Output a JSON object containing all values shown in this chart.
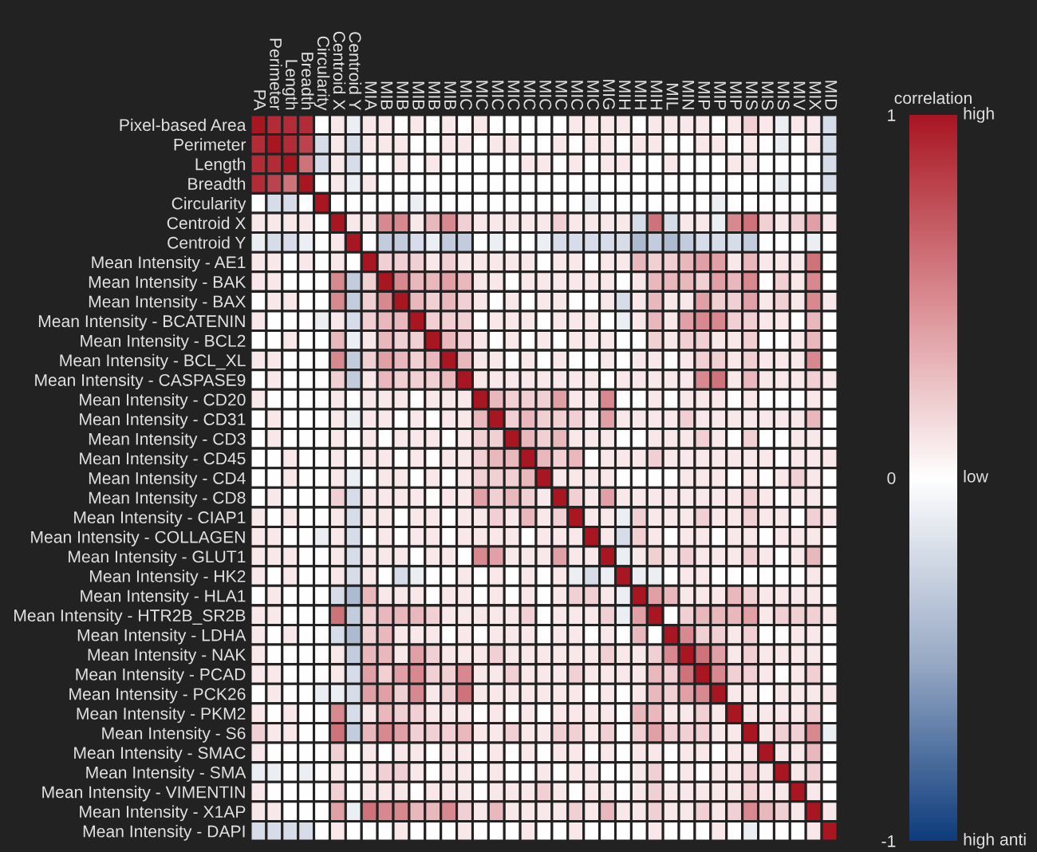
{
  "chart_data": {
    "type": "heatmap",
    "categories": [
      "PA",
      "Perimeter",
      "Length",
      "Breadth",
      "Circularity",
      "Centroid X",
      "Centroid Y",
      "MIA",
      "MIB",
      "MIB",
      "MIB",
      "MIB",
      "MIB",
      "MIC",
      "MIC",
      "MIC",
      "MIC",
      "MIC",
      "MIC",
      "MIC",
      "MIC",
      "MIC",
      "MIG",
      "MIH",
      "MIH",
      "MIH",
      "MIL",
      "MIN",
      "MIP",
      "MIP",
      "MIP",
      "MIS",
      "MIS",
      "MIS",
      "MIV",
      "MIX",
      "MID"
    ],
    "y_categories": [
      "Pixel-based Area",
      "Perimeter",
      "Length",
      "Breadth",
      "Circularity",
      "Centroid X",
      "Centroid Y",
      "Mean Intensity - AE1",
      "Mean Intensity - BAK",
      "Mean Intensity - BAX",
      "Mean Intensity - BCATENIN",
      "Mean Intensity - BCL2",
      "Mean Intensity - BCL_XL",
      "Mean Intensity - CASPASE9",
      "Mean Intensity - CD20",
      "Mean Intensity - CD31",
      "Mean Intensity - CD3",
      "Mean Intensity - CD45",
      "Mean Intensity - CD4",
      "Mean Intensity - CD8",
      "Mean Intensity - CIAP1",
      "Mean Intensity - COLLAGEN",
      "Mean Intensity - GLUT1",
      "Mean Intensity - HK2",
      "Mean Intensity - HLA1",
      "Mean Intensity - HTR2B_SR2B",
      "Mean Intensity - LDHA",
      "Mean Intensity - NAK",
      "Mean Intensity - PCAD",
      "Mean Intensity - PCK26",
      "Mean Intensity - PKM2",
      "Mean Intensity - S6",
      "Mean Intensity - SMAC",
      "Mean Intensity - SMA",
      "Mean Intensity - VIMENTIN",
      "Mean Intensity - X1AP",
      "Mean Intensity - DAPI"
    ],
    "cells": [
      [
        1,
        0.9,
        0.9,
        0.9,
        0,
        0.1,
        -0.1,
        0.1,
        0.1,
        0,
        0.1,
        0,
        0.1,
        0,
        0.1,
        0,
        0,
        0,
        0,
        0,
        0.1,
        0.1,
        0.1,
        0.1,
        0,
        0.1,
        0.1,
        0.1,
        0.1,
        0,
        0.1,
        0.2,
        0.1,
        -0.1,
        0.1,
        0.1,
        -0.2
      ],
      [
        0.9,
        1,
        0.9,
        0.8,
        -0.2,
        0.1,
        -0.2,
        0.1,
        0.1,
        0.1,
        0,
        0,
        0.1,
        0.1,
        0,
        0.1,
        0.1,
        0,
        0,
        0.1,
        0,
        0.1,
        0.1,
        0,
        0.1,
        0.1,
        0,
        0,
        0.1,
        0.1,
        0,
        0.1,
        0,
        -0.1,
        0,
        0.1,
        -0.2
      ],
      [
        0.9,
        0.9,
        1,
        0.6,
        -0.2,
        0.1,
        -0.2,
        0,
        0,
        0.1,
        0,
        0.1,
        0,
        0,
        0,
        0,
        0,
        0.1,
        0.1,
        0,
        0.1,
        0,
        0.1,
        0.1,
        0,
        0,
        0.1,
        0,
        0,
        0,
        0.1,
        0.1,
        0,
        0,
        0,
        0,
        -0.2
      ],
      [
        0.9,
        0.8,
        0.6,
        1,
        0,
        0.1,
        -0.1,
        0.1,
        0,
        0,
        0,
        0,
        0,
        0,
        0,
        0,
        0,
        0,
        0,
        0,
        0,
        0,
        0,
        0,
        0,
        0,
        0,
        0,
        0,
        0,
        0,
        0,
        0,
        -0.1,
        0,
        0,
        -0.2
      ],
      [
        0,
        -0.2,
        -0.2,
        0,
        1,
        0,
        0,
        0,
        0,
        0,
        -0.1,
        0,
        0,
        0,
        0,
        0,
        0,
        0,
        0,
        0,
        0,
        -0.1,
        0,
        0,
        0,
        0,
        0,
        0,
        0,
        -0.1,
        0,
        0,
        0,
        0,
        0,
        0,
        0
      ],
      [
        0.1,
        0.1,
        0.1,
        0.1,
        0,
        1,
        0.1,
        0.1,
        0.5,
        0.5,
        0.1,
        0.3,
        0.5,
        0.2,
        0.1,
        0.1,
        0.1,
        0.1,
        0.1,
        0.2,
        0.1,
        0.1,
        0.1,
        0.1,
        -0.2,
        0.6,
        -0.2,
        0.1,
        0.1,
        -0.1,
        0.5,
        0.6,
        0.2,
        0.1,
        0.2,
        0.4,
        0.1
      ],
      [
        -0.1,
        -0.2,
        -0.2,
        -0.1,
        0,
        0.1,
        1,
        0,
        -0.3,
        -0.3,
        -0.2,
        -0.1,
        -0.3,
        -0.3,
        0,
        -0.1,
        0,
        0,
        -0.1,
        -0.2,
        -0.2,
        -0.2,
        -0.2,
        -0.2,
        -0.4,
        -0.3,
        -0.4,
        -0.3,
        -0.2,
        -0.2,
        -0.2,
        -0.3,
        0,
        0,
        0,
        -0.1,
        0
      ],
      [
        0.1,
        0.1,
        0,
        0.1,
        0,
        0.1,
        0,
        1,
        0.2,
        0.2,
        0.2,
        0.1,
        0.2,
        0.1,
        0.1,
        0.1,
        0.1,
        0.1,
        0,
        0.1,
        0.1,
        0,
        0.1,
        0.1,
        0.3,
        0.2,
        0.2,
        0.3,
        0.4,
        0.4,
        0.1,
        0.3,
        0.1,
        0.1,
        0.1,
        0.6,
        0
      ],
      [
        0.1,
        0.1,
        0,
        0,
        0,
        0.5,
        -0.3,
        0.2,
        1,
        0.5,
        0.3,
        0.3,
        0.4,
        0.3,
        0.1,
        0.1,
        0,
        0.1,
        0.1,
        0.1,
        0.1,
        0.1,
        0.1,
        0,
        0.1,
        0.3,
        0.3,
        0.3,
        0.2,
        0.4,
        0.3,
        0.5,
        0,
        0.2,
        0.1,
        0.5,
        0
      ],
      [
        0,
        0.1,
        0.1,
        0,
        0,
        0.5,
        -0.3,
        0.2,
        0.5,
        1,
        0.3,
        0.2,
        0.3,
        0.2,
        0.1,
        0,
        0.1,
        0,
        0.1,
        0.1,
        0,
        0,
        0.1,
        -0.2,
        0.1,
        0.3,
        0.1,
        0.1,
        0.4,
        0.2,
        0.2,
        0.4,
        0.1,
        0.2,
        0.1,
        0.5,
        0.1
      ],
      [
        0.1,
        0,
        0,
        0,
        -0.1,
        0.1,
        -0.2,
        0.2,
        0.3,
        0.3,
        1,
        0.2,
        0.2,
        0.2,
        0,
        0.1,
        0.1,
        0.1,
        0,
        0.1,
        0.1,
        0.1,
        0,
        -0.1,
        0.1,
        0.3,
        0.1,
        0.4,
        0.5,
        0.5,
        0.2,
        0.2,
        0.1,
        0.1,
        0,
        0.3,
        0
      ],
      [
        0,
        0,
        0.1,
        0,
        0,
        0.3,
        -0.1,
        0.1,
        0.3,
        0.2,
        0.2,
        1,
        0.3,
        0.2,
        0.1,
        0,
        0.1,
        0,
        0.1,
        0,
        0.1,
        0.1,
        0.1,
        0,
        0,
        0.2,
        0.1,
        0.2,
        0.2,
        0.1,
        0.1,
        0.2,
        0,
        0,
        0.1,
        0.3,
        0
      ],
      [
        0.1,
        0.1,
        0,
        0,
        0,
        0.5,
        -0.3,
        0.2,
        0.4,
        0.3,
        0.2,
        0.3,
        1,
        0.3,
        0.1,
        0.1,
        0,
        0.1,
        0,
        0.1,
        0,
        0,
        0.1,
        0,
        0.1,
        0.1,
        0,
        0.1,
        0.2,
        0.2,
        0.1,
        0.2,
        0.1,
        0.1,
        0.1,
        0.5,
        0
      ],
      [
        0,
        0.1,
        0,
        0,
        0,
        0.2,
        -0.3,
        0.1,
        0.3,
        0.2,
        0.2,
        0.2,
        0.3,
        1,
        0.1,
        0.1,
        0.1,
        0.1,
        0.1,
        0.1,
        0.1,
        0.1,
        0,
        0.1,
        0.1,
        0.1,
        0.1,
        0.1,
        0.5,
        0.6,
        0.1,
        0.3,
        0.1,
        0.1,
        0.1,
        0.2,
        0.1
      ],
      [
        0.1,
        0,
        0,
        0,
        0,
        0.1,
        0,
        0.1,
        0.1,
        0.1,
        0,
        0.1,
        0.1,
        0.1,
        1,
        0.3,
        0.2,
        0.2,
        0.2,
        0.4,
        0.1,
        0.1,
        0.5,
        0,
        0,
        0.1,
        0,
        0.1,
        0.1,
        0.1,
        0,
        0.1,
        0,
        0,
        0,
        0.1,
        0
      ],
      [
        0,
        0.1,
        0,
        0,
        0,
        0.1,
        -0.1,
        0.1,
        0.1,
        0,
        0.1,
        0,
        0.1,
        0.1,
        0.3,
        1,
        0.2,
        0.3,
        0.2,
        0.2,
        0.2,
        0.1,
        0.4,
        0.1,
        0.1,
        0.1,
        0.1,
        0.2,
        0.1,
        0.1,
        0.1,
        0.1,
        0.1,
        0.1,
        0.1,
        0.3,
        0
      ],
      [
        0,
        0.1,
        0,
        0,
        0,
        0.1,
        0,
        0.1,
        0,
        0.1,
        0.1,
        0.1,
        0,
        0.1,
        0.2,
        0.2,
        1,
        0.3,
        0.2,
        0.3,
        0.1,
        0.1,
        0.1,
        0,
        0,
        0.1,
        0.1,
        0.1,
        0.2,
        0.1,
        0,
        0.2,
        0,
        0,
        0.1,
        0.1,
        0
      ],
      [
        0,
        0,
        0.1,
        0,
        0,
        0.1,
        0,
        0.1,
        0.1,
        0,
        0.1,
        0,
        0.1,
        0.1,
        0.2,
        0.3,
        0.3,
        1,
        0.3,
        0.2,
        0.3,
        0,
        0.1,
        0.1,
        0.1,
        0.2,
        0.1,
        0.1,
        0.1,
        0.1,
        0.1,
        0.1,
        0.1,
        0,
        0.1,
        0.1,
        0.1
      ],
      [
        0,
        0,
        0.1,
        0,
        0,
        0.1,
        -0.1,
        0,
        0.1,
        0.1,
        0,
        0.1,
        0,
        0.1,
        0.2,
        0.2,
        0.2,
        0.3,
        1,
        0.1,
        0.1,
        0.1,
        0.1,
        0,
        0,
        0,
        0,
        0.1,
        0.1,
        0.1,
        0,
        0.1,
        0,
        0.1,
        0.2,
        0.1,
        0
      ],
      [
        0,
        0.1,
        0,
        0,
        0,
        0.2,
        -0.2,
        0.1,
        0.1,
        0.1,
        0.1,
        0,
        0.1,
        0.1,
        0.4,
        0.2,
        0.3,
        0.2,
        0.1,
        1,
        0.2,
        0.1,
        0.4,
        0.1,
        0.1,
        0.1,
        0.1,
        0.1,
        0.1,
        0.1,
        0.1,
        0.2,
        0.1,
        0,
        0.1,
        0.1,
        0
      ],
      [
        0.1,
        0,
        0.1,
        0,
        0,
        0.1,
        -0.2,
        0.1,
        0.1,
        0,
        0.1,
        0.1,
        0,
        0.1,
        0.1,
        0.2,
        0.1,
        0.3,
        0.1,
        0.2,
        1,
        0.1,
        0.1,
        -0.1,
        0.2,
        0.1,
        0.1,
        0.1,
        0.2,
        0.1,
        0.1,
        0.2,
        0.1,
        0.1,
        0,
        0.2,
        0.1
      ],
      [
        0.1,
        0.1,
        0,
        0,
        -0.1,
        0.1,
        -0.2,
        0,
        0.1,
        0,
        0.1,
        0.1,
        0,
        0.1,
        0.1,
        0.1,
        0.1,
        0,
        0.1,
        0.1,
        0.1,
        1,
        0.1,
        -0.2,
        0.2,
        0.1,
        0,
        0.1,
        0.1,
        0,
        0.1,
        0.1,
        0,
        0.1,
        0.1,
        0.1,
        0
      ],
      [
        0.1,
        0.1,
        0.1,
        0,
        0,
        0.1,
        -0.2,
        0.1,
        0.1,
        0.1,
        0,
        0.1,
        0.1,
        0,
        0.5,
        0.4,
        0.1,
        0.1,
        0.1,
        0.4,
        0.1,
        0.1,
        1,
        -0.1,
        0.1,
        0.2,
        0.1,
        0.2,
        0.1,
        0.1,
        0.1,
        0.2,
        0.1,
        0,
        0.1,
        0.3,
        0
      ],
      [
        0.1,
        0,
        0.1,
        0,
        0,
        0.1,
        -0.2,
        0.1,
        0,
        -0.2,
        -0.1,
        0,
        0,
        0.1,
        0,
        0.1,
        0,
        0.1,
        0,
        0.1,
        -0.1,
        -0.2,
        -0.1,
        1,
        -0.1,
        -0.1,
        0,
        0.1,
        0.1,
        0,
        0,
        0,
        0,
        0,
        0,
        0.1,
        0
      ],
      [
        0,
        0.1,
        0,
        0,
        0,
        -0.2,
        -0.4,
        0.3,
        0.1,
        0.1,
        0.1,
        0,
        0.1,
        0.1,
        0,
        0.1,
        0,
        0.1,
        0,
        0.1,
        0.2,
        0.2,
        0.1,
        -0.1,
        1,
        0.4,
        0.3,
        0.1,
        0.1,
        0.1,
        0.3,
        0.2,
        0.1,
        0.1,
        0.1,
        0.1,
        0
      ],
      [
        0.1,
        0.1,
        0,
        0,
        0,
        0.6,
        -0.3,
        0.2,
        0.3,
        0.3,
        0.3,
        0.2,
        0.1,
        0.1,
        0.1,
        0.1,
        0.1,
        0.2,
        0,
        0.1,
        0.1,
        0.1,
        0.2,
        -0.1,
        0.4,
        1,
        0,
        0.2,
        0.3,
        0.3,
        0.3,
        0.4,
        0.1,
        0.2,
        0.2,
        0.2,
        0.1
      ],
      [
        0.1,
        0,
        0.1,
        0,
        0,
        -0.2,
        -0.4,
        0.2,
        0.3,
        0.1,
        0.1,
        0.1,
        0,
        0.1,
        0,
        0.1,
        0.1,
        0.1,
        0,
        0.1,
        0.1,
        0,
        0.1,
        0,
        0.3,
        0,
        1,
        0.5,
        0.2,
        0.2,
        0.1,
        0.2,
        0,
        0,
        0.1,
        0.1,
        0
      ],
      [
        0.1,
        0,
        0,
        0,
        0,
        0.1,
        -0.3,
        0.3,
        0.3,
        0.1,
        0.4,
        0.2,
        0.1,
        0.1,
        0.1,
        0.2,
        0.1,
        0.1,
        0.1,
        0.1,
        0.1,
        0.1,
        0.2,
        0.1,
        0.1,
        0.2,
        0.5,
        1,
        0.6,
        0.4,
        0.1,
        0.2,
        0.1,
        0.1,
        0.1,
        0.1,
        0
      ],
      [
        0.1,
        0.1,
        0,
        0,
        0,
        0.1,
        -0.2,
        0.4,
        0.2,
        0.4,
        0.5,
        0.2,
        0.2,
        0.5,
        0.1,
        0.1,
        0.2,
        0.1,
        0.1,
        0.1,
        0.2,
        0.1,
        0.1,
        0.1,
        0.1,
        0.3,
        0.2,
        0.6,
        1,
        0.5,
        0.2,
        0.2,
        0.1,
        0,
        0.1,
        0.2,
        0
      ],
      [
        0,
        0.1,
        0,
        0,
        -0.1,
        -0.1,
        -0.2,
        0.4,
        0.4,
        0.2,
        0.5,
        0.1,
        0.2,
        0.6,
        0.1,
        0.1,
        0.1,
        0.1,
        0.1,
        0.1,
        0.1,
        0,
        0.1,
        0,
        0.1,
        0.3,
        0.2,
        0.4,
        0.5,
        1,
        0.1,
        0.1,
        0,
        0.1,
        0.1,
        0.1,
        0.1
      ],
      [
        0.1,
        0,
        0.1,
        0,
        0,
        0.5,
        -0.2,
        0.1,
        0.3,
        0.2,
        0.2,
        0.1,
        0.1,
        0.1,
        0,
        0.1,
        0,
        0.1,
        0,
        0.1,
        0.1,
        0.1,
        0.1,
        0,
        0.3,
        0.3,
        0.1,
        0.1,
        0.2,
        0.1,
        1,
        0.1,
        0.1,
        0.1,
        0.1,
        0.2,
        0
      ],
      [
        0.2,
        0.1,
        0.1,
        0,
        0,
        0.6,
        -0.3,
        0.3,
        0.5,
        0.4,
        0.2,
        0.2,
        0.2,
        0.3,
        0.1,
        0.1,
        0.2,
        0.1,
        0.1,
        0.2,
        0.2,
        0.1,
        0.2,
        0,
        0.2,
        0.4,
        0.2,
        0.2,
        0.2,
        0.1,
        0.1,
        1,
        0.1,
        0.2,
        0.2,
        0.5,
        -0.1
      ],
      [
        0.1,
        0,
        0,
        0,
        0,
        0.2,
        0,
        0.1,
        0,
        0.1,
        0.1,
        0,
        0.1,
        0.1,
        0,
        0.1,
        0,
        0.1,
        0,
        0.1,
        0.1,
        0,
        0.1,
        0,
        0.1,
        0.1,
        0,
        0.1,
        0.1,
        0,
        0.1,
        0.1,
        1,
        0.1,
        0.1,
        0.3,
        0
      ],
      [
        -0.1,
        -0.1,
        0,
        -0.1,
        0,
        0.1,
        0,
        0.1,
        0.2,
        0.2,
        0.1,
        0,
        0.1,
        0.1,
        0,
        0.1,
        0,
        0,
        0.1,
        0,
        0.1,
        0.1,
        0,
        0,
        0.1,
        0.2,
        0,
        0.1,
        0,
        0.1,
        0.1,
        0.2,
        0.1,
        1,
        0.1,
        0.2,
        0
      ],
      [
        0.1,
        0,
        0,
        0,
        0,
        0.2,
        0,
        0.1,
        0.1,
        0.1,
        0,
        0.1,
        0.1,
        0.1,
        0,
        0.1,
        0.1,
        0.1,
        0.2,
        0.1,
        0,
        0.1,
        0.1,
        0,
        0.1,
        0.2,
        0.1,
        0.1,
        0.1,
        0.1,
        0.1,
        0.2,
        0.1,
        0.1,
        1,
        0.1,
        0
      ],
      [
        0.1,
        0.1,
        0,
        0,
        0,
        0.4,
        -0.1,
        0.6,
        0.5,
        0.5,
        0.3,
        0.3,
        0.5,
        0.2,
        0.1,
        0.3,
        0.1,
        0.1,
        0.1,
        0.1,
        0.2,
        0.1,
        0.3,
        0.1,
        0.1,
        0.2,
        0.1,
        0.1,
        0.2,
        0.1,
        0.2,
        0.5,
        0.3,
        0.2,
        0.1,
        1,
        0.1
      ],
      [
        -0.2,
        -0.2,
        -0.2,
        -0.2,
        0,
        0.1,
        0,
        0,
        0,
        0.1,
        0,
        0,
        0,
        0.1,
        0,
        0,
        0,
        0.1,
        0,
        0,
        0.1,
        0,
        0,
        0,
        0,
        0.1,
        0,
        0,
        0,
        0.1,
        0,
        -0.1,
        0,
        0,
        0,
        0.1,
        1
      ]
    ],
    "clim": [
      -1,
      1
    ],
    "cticks": [
      1,
      0,
      -1
    ],
    "clabel": "correlation",
    "annotations": [
      "high",
      "low",
      "high anti"
    ]
  }
}
